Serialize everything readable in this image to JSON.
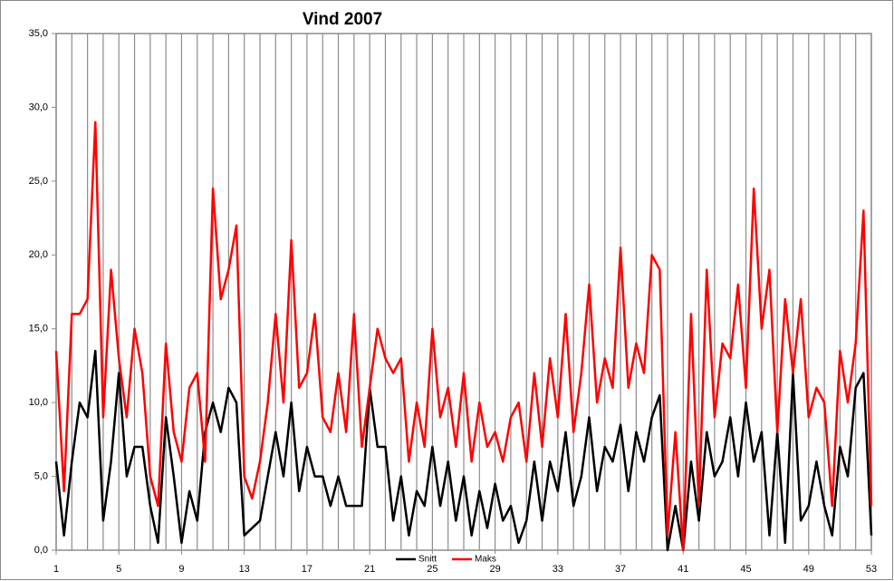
{
  "chart_data": {
    "type": "line",
    "title": "Vind 2007",
    "x": [
      1,
      1.5,
      2,
      2.5,
      3,
      3.5,
      4,
      4.5,
      5,
      5.5,
      6,
      6.5,
      7,
      7.5,
      8,
      8.5,
      9,
      9.5,
      10,
      10.5,
      11,
      11.5,
      12,
      12.5,
      13,
      13.5,
      14,
      14.5,
      15,
      15.5,
      16,
      16.5,
      17,
      17.5,
      18,
      18.5,
      19,
      19.5,
      20,
      20.5,
      21,
      21.5,
      22,
      22.5,
      23,
      23.5,
      24,
      24.5,
      25,
      25.5,
      26,
      26.5,
      27,
      27.5,
      28,
      28.5,
      29,
      29.5,
      30,
      30.5,
      31,
      31.5,
      32,
      32.5,
      33,
      33.5,
      34,
      34.5,
      35,
      35.5,
      36,
      36.5,
      37,
      37.5,
      38,
      38.5,
      39,
      39.5,
      40,
      40.5,
      41,
      41.5,
      42,
      42.5,
      43,
      43.5,
      44,
      44.5,
      45,
      45.5,
      46,
      46.5,
      47,
      47.5,
      48,
      48.5,
      49,
      49.5,
      50,
      50.5,
      51,
      51.5,
      52,
      52.5,
      53
    ],
    "series": [
      {
        "name": "Snitt",
        "color": "#000000",
        "values": [
          6,
          1,
          6,
          10,
          9,
          13.5,
          2,
          6,
          12,
          5,
          7,
          7,
          3,
          0.5,
          9,
          5,
          0.5,
          4,
          2,
          8,
          10,
          8,
          11,
          10,
          1,
          1.5,
          2,
          5,
          8,
          5,
          10,
          4,
          7,
          5,
          5,
          3,
          5,
          3,
          3,
          3,
          11,
          7,
          7,
          2,
          5,
          1,
          4,
          3,
          7,
          3,
          6,
          2,
          5,
          1,
          4,
          1.5,
          4.5,
          2,
          3,
          0.5,
          2,
          6,
          2,
          6,
          4,
          8,
          3,
          5,
          9,
          4,
          7,
          6,
          8.5,
          4,
          8,
          6,
          9,
          10.5,
          0,
          3,
          0,
          6,
          2,
          8,
          5,
          6,
          9,
          5,
          10,
          6,
          8,
          1,
          8,
          0.5,
          12,
          2,
          3,
          6,
          3,
          1,
          7,
          5,
          11,
          12,
          1
        ]
      },
      {
        "name": "Maks",
        "color": "#ff0000",
        "values": [
          13.5,
          4,
          16,
          16,
          17,
          29,
          9,
          19,
          13,
          9,
          15,
          12,
          5,
          3,
          14,
          8,
          6,
          11,
          12,
          6,
          24.5,
          17,
          19,
          22,
          5,
          3.5,
          6,
          10,
          16,
          10,
          21,
          11,
          12,
          16,
          9,
          8,
          12,
          8,
          16,
          7,
          11,
          15,
          13,
          12,
          13,
          6,
          10,
          7,
          15,
          9,
          11,
          7,
          12,
          6,
          10,
          7,
          8,
          6,
          9,
          10,
          6,
          12,
          7,
          13,
          9,
          16,
          8,
          12,
          18,
          10,
          13,
          11,
          20.5,
          11,
          14,
          12,
          20,
          19,
          1,
          8,
          0,
          16,
          3,
          19,
          9,
          14,
          13,
          18,
          11,
          24.5,
          15,
          19,
          8,
          17,
          12,
          17,
          9,
          11,
          10,
          3,
          13.5,
          10,
          14,
          23,
          3
        ]
      }
    ],
    "xlim": [
      1,
      53
    ],
    "xticks": [
      1,
      5,
      9,
      13,
      17,
      21,
      25,
      29,
      33,
      37,
      41,
      45,
      49,
      53
    ],
    "x_grid_step": 1,
    "ylim": [
      0,
      35
    ],
    "yticks": [
      {
        "value": 0,
        "label": "0,0"
      },
      {
        "value": 5,
        "label": "5,0"
      },
      {
        "value": 10,
        "label": "10,0"
      },
      {
        "value": 15,
        "label": "15,0"
      },
      {
        "value": 20,
        "label": "20,0"
      },
      {
        "value": 25,
        "label": "25,0"
      },
      {
        "value": 30,
        "label": "30,0"
      },
      {
        "value": 35,
        "label": "35,0"
      }
    ],
    "legend": "bottom"
  }
}
